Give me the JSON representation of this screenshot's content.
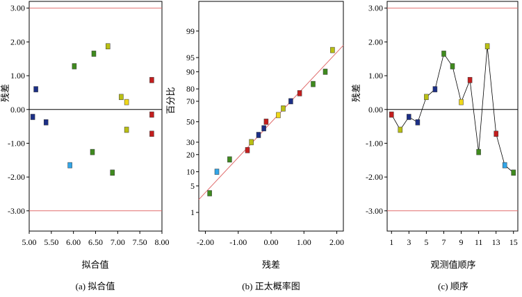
{
  "colors": {
    "ref_line": "#e06b6b",
    "axis": "#000000",
    "zero_line": "#000000",
    "connector": "#000000",
    "points": {
      "navy": "#1c2f86",
      "green": "#3f8a1e",
      "olive": "#b9bf14",
      "red": "#c41e1e",
      "cyan": "#33a6e8",
      "yellow": "#f0d81a"
    }
  },
  "chart_data": [
    {
      "type": "scatter",
      "panel": "a",
      "caption": "(a)  拟合值",
      "xlabel": "拟合值",
      "ylabel": "残差",
      "xlim": [
        5.0,
        8.0
      ],
      "ylim": [
        -3.6,
        3.2
      ],
      "xticks": [
        "5.00",
        "5.50",
        "6.00",
        "6.50",
        "7.00",
        "7.50",
        "8.00"
      ],
      "yticks": [
        "-3.00",
        "-2.00",
        "-1.00",
        "0.00",
        "1.00",
        "2.00",
        "3.00"
      ],
      "reference_lines": [
        3.0,
        -3.0
      ],
      "zero_line": 0.0,
      "points": [
        {
          "x": 5.15,
          "y": 0.6,
          "color": "navy"
        },
        {
          "x": 5.08,
          "y": -0.22,
          "color": "navy"
        },
        {
          "x": 5.38,
          "y": -0.38,
          "color": "navy"
        },
        {
          "x": 5.92,
          "y": -1.65,
          "color": "cyan"
        },
        {
          "x": 6.02,
          "y": 1.28,
          "color": "green"
        },
        {
          "x": 6.43,
          "y": -1.26,
          "color": "green"
        },
        {
          "x": 6.46,
          "y": 1.65,
          "color": "green"
        },
        {
          "x": 6.78,
          "y": 1.87,
          "color": "olive"
        },
        {
          "x": 6.88,
          "y": -1.87,
          "color": "green"
        },
        {
          "x": 7.08,
          "y": 0.37,
          "color": "olive"
        },
        {
          "x": 7.2,
          "y": 0.22,
          "color": "yellow"
        },
        {
          "x": 7.2,
          "y": -0.6,
          "color": "olive"
        },
        {
          "x": 7.77,
          "y": 0.87,
          "color": "red"
        },
        {
          "x": 7.77,
          "y": -0.15,
          "color": "red"
        },
        {
          "x": 7.77,
          "y": -0.72,
          "color": "red"
        }
      ]
    },
    {
      "type": "scatter",
      "panel": "b",
      "caption": "(b)  正太概率图",
      "xlabel": "残差",
      "ylabel": "百分比",
      "xlim": [
        -2.2,
        2.2
      ],
      "y_scale": "normal probability",
      "xticks": [
        "-2.00",
        "-1.00",
        "0.00",
        "1.00",
        "2.00"
      ],
      "yticks": [
        "1",
        "5",
        "10",
        "20",
        "30",
        "50",
        "70",
        "80",
        "90",
        "95",
        "99"
      ],
      "fit_line": [
        [
          -2.2,
          2.3
        ],
        [
          2.2,
          97.5
        ]
      ],
      "points": [
        {
          "x": -1.87,
          "y": 3.33,
          "color": "green"
        },
        {
          "x": -1.65,
          "y": 10.0,
          "color": "cyan"
        },
        {
          "x": -1.26,
          "y": 16.7,
          "color": "green"
        },
        {
          "x": -0.72,
          "y": 23.3,
          "color": "red"
        },
        {
          "x": -0.6,
          "y": 30.0,
          "color": "olive"
        },
        {
          "x": -0.38,
          "y": 36.7,
          "color": "navy"
        },
        {
          "x": -0.22,
          "y": 43.3,
          "color": "navy"
        },
        {
          "x": -0.15,
          "y": 50.0,
          "color": "red"
        },
        {
          "x": 0.22,
          "y": 56.7,
          "color": "yellow"
        },
        {
          "x": 0.37,
          "y": 63.3,
          "color": "olive"
        },
        {
          "x": 0.6,
          "y": 70.0,
          "color": "navy"
        },
        {
          "x": 0.87,
          "y": 76.7,
          "color": "red"
        },
        {
          "x": 1.28,
          "y": 83.3,
          "color": "green"
        },
        {
          "x": 1.65,
          "y": 90.0,
          "color": "green"
        },
        {
          "x": 1.87,
          "y": 96.7,
          "color": "olive"
        }
      ]
    },
    {
      "type": "line",
      "panel": "c",
      "caption": "(c)  顺序",
      "xlabel": "观测值顺序",
      "ylabel": "残差",
      "xlim": [
        0.5,
        15.5
      ],
      "ylim": [
        -3.6,
        3.2
      ],
      "xticks": [
        "1",
        "3",
        "5",
        "7",
        "9",
        "11",
        "13",
        "15"
      ],
      "yticks": [
        "-3.00",
        "-2.00",
        "-1.00",
        "0.00",
        "1.00",
        "2.00",
        "3.00"
      ],
      "reference_lines": [
        3.0,
        -3.0
      ],
      "zero_line": 0.0,
      "points": [
        {
          "x": 1,
          "y": -0.15,
          "color": "red"
        },
        {
          "x": 2,
          "y": -0.6,
          "color": "olive"
        },
        {
          "x": 3,
          "y": -0.22,
          "color": "navy"
        },
        {
          "x": 4,
          "y": -0.38,
          "color": "navy"
        },
        {
          "x": 5,
          "y": 0.37,
          "color": "olive"
        },
        {
          "x": 6,
          "y": 0.6,
          "color": "navy"
        },
        {
          "x": 7,
          "y": 1.65,
          "color": "green"
        },
        {
          "x": 8,
          "y": 1.28,
          "color": "green"
        },
        {
          "x": 9,
          "y": 0.22,
          "color": "yellow"
        },
        {
          "x": 10,
          "y": 0.87,
          "color": "red"
        },
        {
          "x": 11,
          "y": -1.26,
          "color": "green"
        },
        {
          "x": 12,
          "y": 1.87,
          "color": "olive"
        },
        {
          "x": 13,
          "y": -0.72,
          "color": "red"
        },
        {
          "x": 14,
          "y": -1.65,
          "color": "cyan"
        },
        {
          "x": 15,
          "y": -1.87,
          "color": "green"
        }
      ]
    }
  ]
}
